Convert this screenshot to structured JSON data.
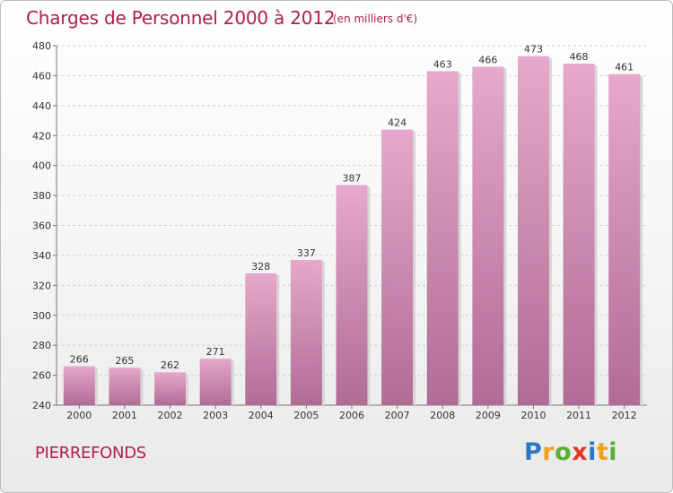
{
  "header": {
    "title": "Charges de Personnel 2000 à 2012",
    "subtitle": "(en milliers d'€)"
  },
  "footer": {
    "city": "PIERREFONDS",
    "logo_letters": [
      "P",
      "r",
      "o",
      "x",
      "i",
      "t",
      "i"
    ],
    "logo_colors": [
      "#2e78c2",
      "#f0a21c",
      "#57b033",
      "#e23a28",
      "#2e78c2",
      "#f0a21c",
      "#57b033"
    ]
  },
  "colors": {
    "title": "#b21d4c",
    "bar_top": "#e6a8cc",
    "bar_bottom": "#b06c95"
  },
  "chart_data": {
    "type": "bar",
    "title": "Charges de Personnel 2000 à 2012",
    "subtitle": "(en milliers d'€)",
    "xlabel": "",
    "ylabel": "",
    "categories": [
      "2000",
      "2001",
      "2002",
      "2003",
      "2004",
      "2005",
      "2006",
      "2007",
      "2008",
      "2009",
      "2010",
      "2011",
      "2012"
    ],
    "values": [
      266,
      265,
      262,
      271,
      328,
      337,
      387,
      424,
      463,
      466,
      473,
      468,
      461
    ],
    "ylim": [
      240,
      480
    ],
    "yticks": [
      240,
      260,
      280,
      300,
      320,
      340,
      360,
      380,
      400,
      420,
      440,
      460,
      480
    ],
    "grid": true,
    "legend": "none"
  }
}
